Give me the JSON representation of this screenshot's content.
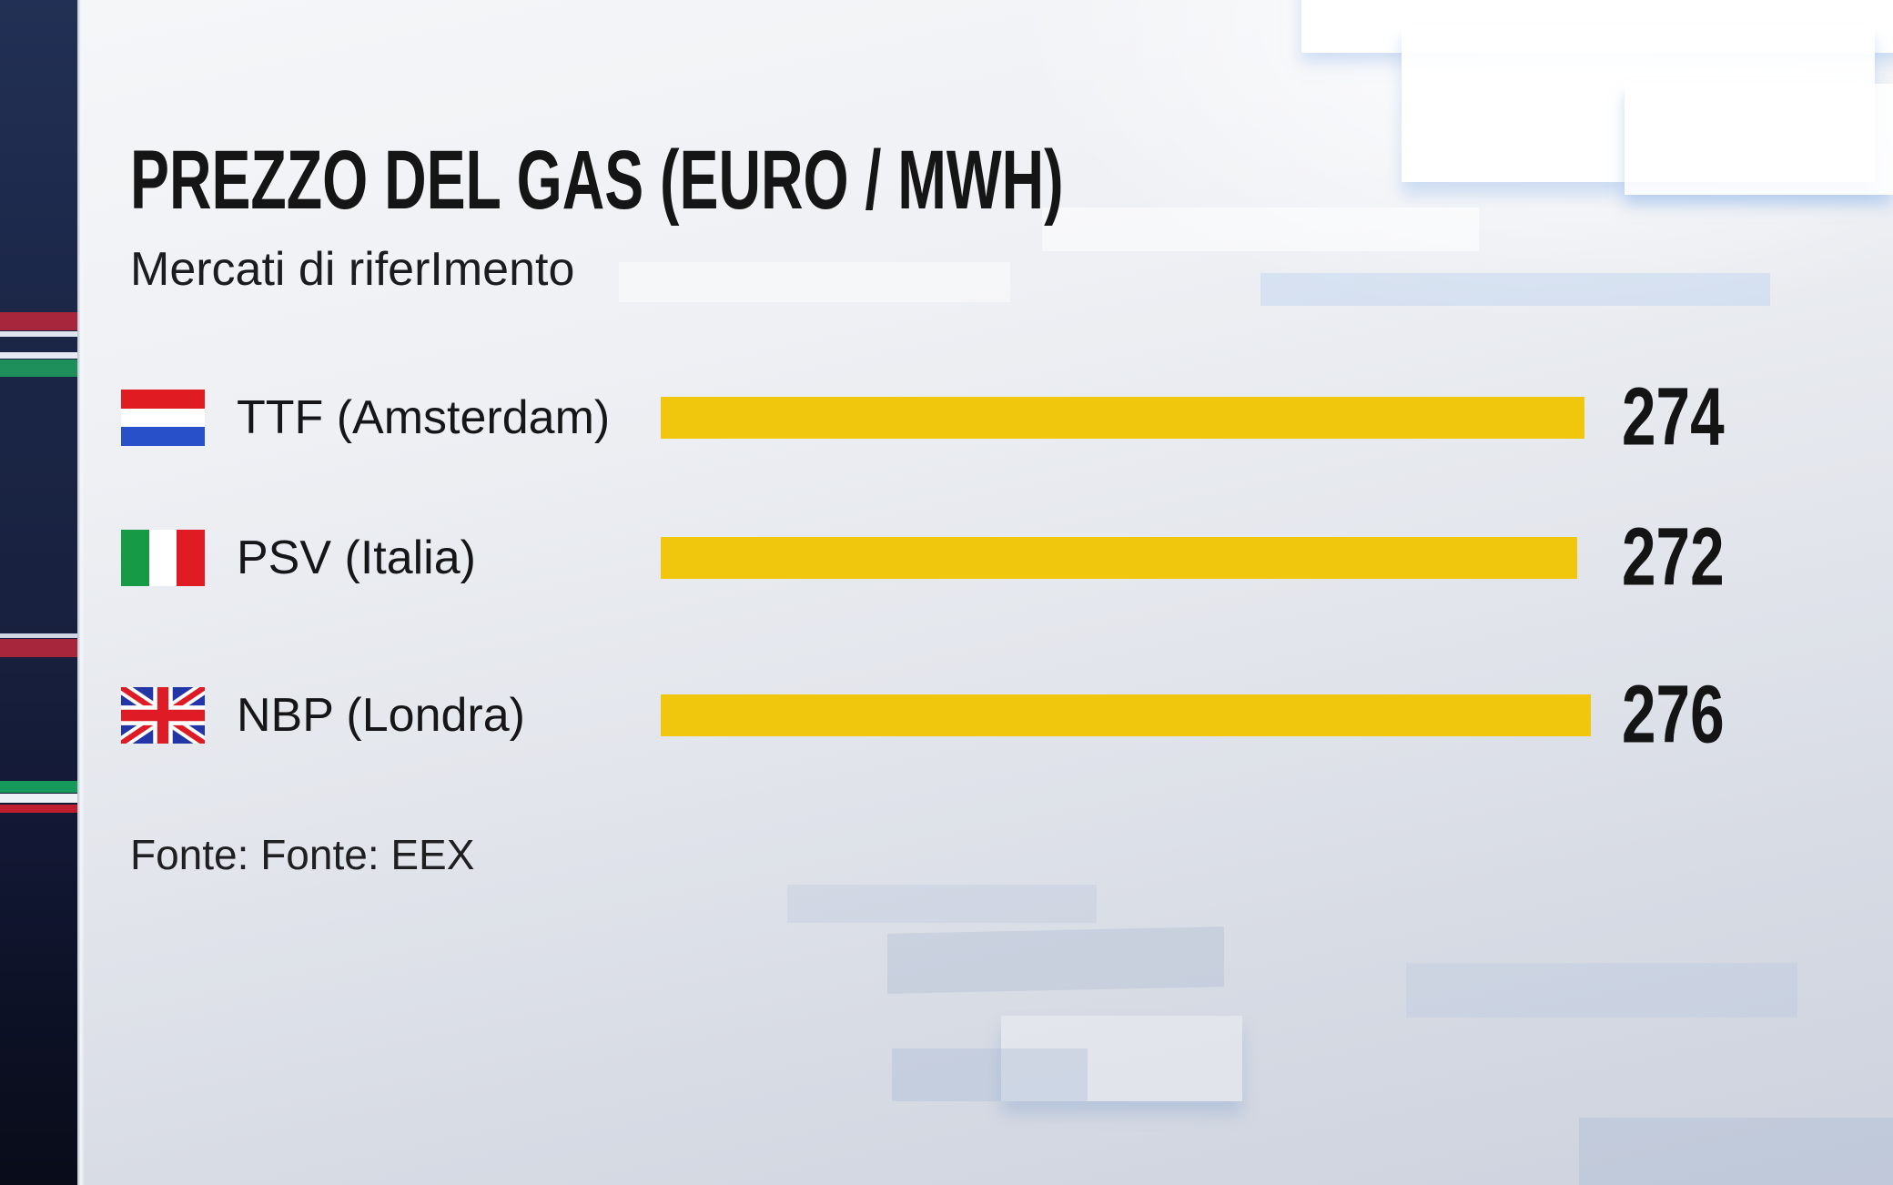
{
  "header": {
    "title": "PREZZO DEL GAS (EURO / MWH)",
    "subtitle": "Mercati di riferImento"
  },
  "footer": {
    "source": "Fonte: Fonte: EEX"
  },
  "chart_data": {
    "type": "bar",
    "orientation": "horizontal",
    "title": "PREZZO DEL GAS (EURO / MWH)",
    "subtitle": "Mercati di riferImento",
    "source": "Fonte: Fonte: EEX",
    "categories": [
      "TTF (Amsterdam)",
      "PSV (Italia)",
      "NBP (Londra)"
    ],
    "flags": [
      "netherlands",
      "italy",
      "united-kingdom"
    ],
    "values": [
      274,
      272,
      276
    ],
    "value_labels": [
      "274",
      "272",
      "276"
    ],
    "xlim": [
      0,
      276
    ],
    "grid": false,
    "legend": "none",
    "bar_color": "#F0C70D",
    "value_color": "#141414"
  },
  "colors": {
    "bar_yellow": "#F0C70D",
    "strip_navy": "#1B2647",
    "strip_red": "#A8263C",
    "strip_green": "#1E8F5B",
    "panel_light": "#EEF0F4",
    "panel_dark": "#CDD2DE",
    "text_dark": "#151515"
  }
}
